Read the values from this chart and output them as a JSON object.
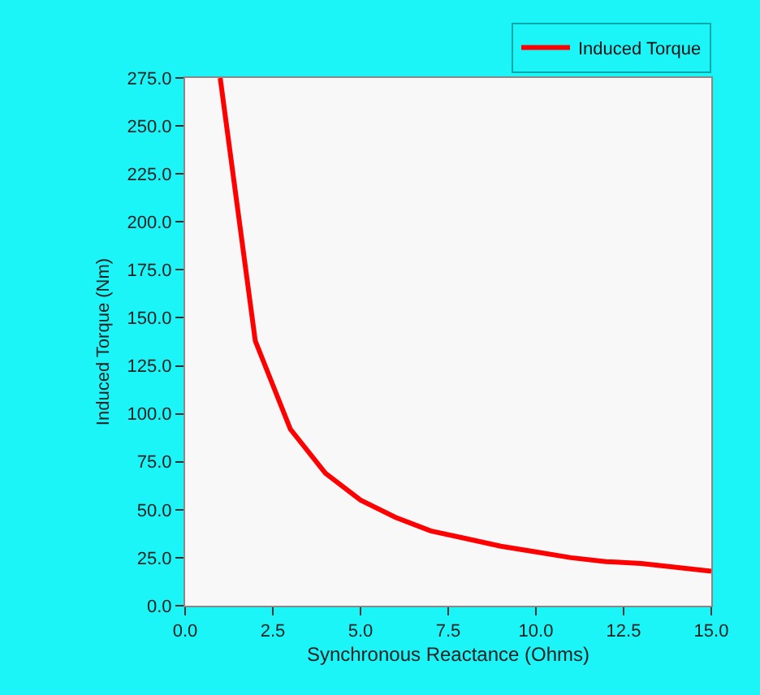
{
  "chart_data": {
    "type": "line",
    "xlabel": "Synchronous Reactance (Ohms)",
    "ylabel": "Induced Torque (Nm)",
    "x": [
      1,
      2,
      3,
      4,
      5,
      6,
      7,
      8,
      9,
      10,
      11,
      12,
      13,
      14,
      15
    ],
    "series": [
      {
        "name": "Induced Torque",
        "color": "#ff0000",
        "values": [
          275,
          138,
          92,
          69,
          55,
          46,
          39,
          35,
          31,
          28,
          25,
          23,
          22,
          20,
          18
        ]
      }
    ],
    "xlim": [
      0,
      15
    ],
    "xticks": [
      {
        "value": 0,
        "label": "0.0"
      },
      {
        "value": 2.5,
        "label": "2.5"
      },
      {
        "value": 5,
        "label": "5.0"
      },
      {
        "value": 7.5,
        "label": "7.5"
      },
      {
        "value": 10,
        "label": "10.0"
      },
      {
        "value": 12.5,
        "label": "12.5"
      },
      {
        "value": 15,
        "label": "15.0"
      }
    ],
    "ylim": [
      0,
      275
    ],
    "yticks": [
      {
        "value": 0,
        "label": "0.0"
      },
      {
        "value": 25,
        "label": "25.0"
      },
      {
        "value": 50,
        "label": "50.0"
      },
      {
        "value": 75,
        "label": "75.0"
      },
      {
        "value": 100,
        "label": "100.0"
      },
      {
        "value": 125,
        "label": "125.0"
      },
      {
        "value": 150,
        "label": "150.0"
      },
      {
        "value": 175,
        "label": "175.0"
      },
      {
        "value": 200,
        "label": "200.0"
      },
      {
        "value": 225,
        "label": "225.0"
      },
      {
        "value": 250,
        "label": "250.0"
      },
      {
        "value": 275,
        "label": "275.0"
      }
    ],
    "grid": false,
    "legend": "top right",
    "marker": "none",
    "line_style": "solid"
  }
}
